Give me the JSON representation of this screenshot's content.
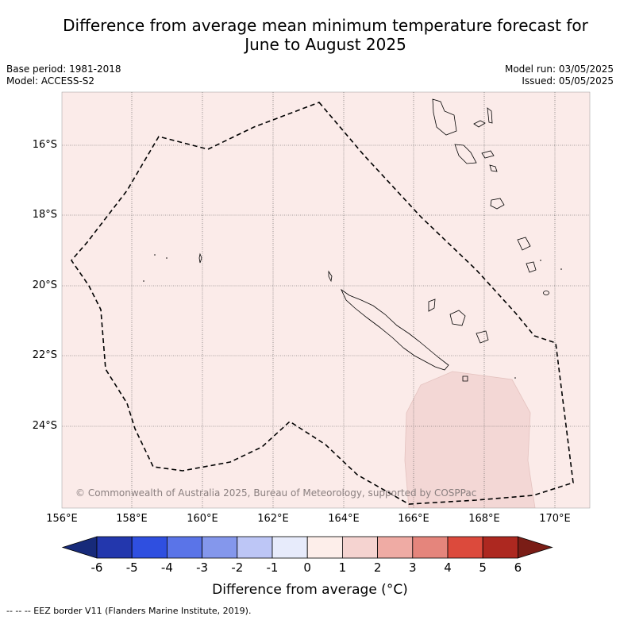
{
  "title_line1": "Difference from average mean minimum temperature forecast for",
  "title_line2": "June to August 2025",
  "meta": {
    "base_period": "Base period: 1981-2018",
    "model": "Model: ACCESS-S2",
    "model_run": "Model run: 03/05/2025",
    "issued": "Issued: 05/05/2025"
  },
  "copyright": "© Commonwealth of Australia 2025, Bureau of Meteorology, supported by COSPPac",
  "lat_labels": [
    "16°S",
    "18°S",
    "20°S",
    "22°S",
    "24°S"
  ],
  "lon_labels": [
    "156°E",
    "158°E",
    "160°E",
    "162°E",
    "164°E",
    "166°E",
    "168°E",
    "170°E"
  ],
  "colorbar": {
    "ticks": [
      "-6",
      "-5",
      "-4",
      "-3",
      "-2",
      "-1",
      "0",
      "1",
      "2",
      "3",
      "4",
      "5",
      "6"
    ],
    "colors": [
      "#172a7a",
      "#2337ad",
      "#2f4fe0",
      "#5a74e8",
      "#8497ec",
      "#bdc6f6",
      "#e7ebfb",
      "#fdeeea",
      "#f5d3d0",
      "#efaba4",
      "#e5857c",
      "#dc4a3c",
      "#ad2820",
      "#7a1d16"
    ],
    "title": "Difference from average (",
    "title_unit": "°C)"
  },
  "footer": "--  --  -- EEZ border V11 (Flanders Marine Institute, 2019).",
  "map_colors": {
    "background": "#fbebe9",
    "anomaly_1_2": "#f3d7d5",
    "grid": "#444444"
  }
}
